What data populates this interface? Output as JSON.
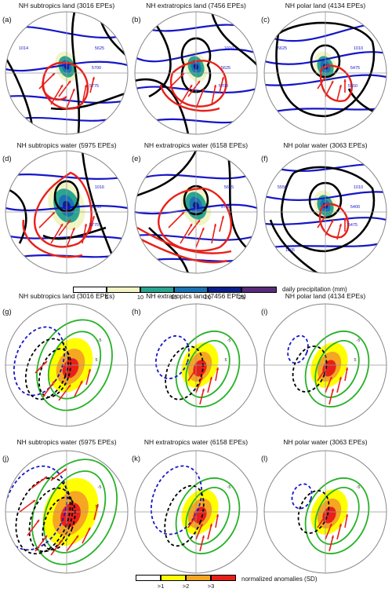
{
  "panels": [
    {
      "label": "(a)",
      "title": "NH subtropics land (3016 EPEs)"
    },
    {
      "label": "(b)",
      "title": "NH extratropics land (7456 EPEs)"
    },
    {
      "label": "(c)",
      "title": "NH polar land (4134 EPEs)"
    },
    {
      "label": "(d)",
      "title": "NH subtropics water (5975 EPEs)"
    },
    {
      "label": "(e)",
      "title": "NH extratropics water (6158 EPEs)"
    },
    {
      "label": "(f)",
      "title": "NH polar water (3063 EPEs)"
    },
    {
      "label": "(g)",
      "title": "NH subtropics land (3016 EPEs)"
    },
    {
      "label": "(h)",
      "title": "NH extratropics land (7456 EPEs)"
    },
    {
      "label": "(i)",
      "title": "NH polar land (4134 EPEs)"
    },
    {
      "label": "(j)",
      "title": "NH subtropics water (5975 EPEs)"
    },
    {
      "label": "(k)",
      "title": "NH extratropics water (6158 EPEs)"
    },
    {
      "label": "(l)",
      "title": "NH polar water (3063 EPEs)"
    }
  ],
  "contour_labels": {
    "a": [
      "5625",
      "5700",
      "5775",
      "1014"
    ],
    "b": [
      "1010",
      "5625",
      "5700"
    ],
    "c": [
      "1010",
      "5475",
      "5550",
      "5625"
    ],
    "d": [
      "1016",
      "5700",
      "5775"
    ],
    "e": [
      "5625",
      "5700"
    ],
    "f": [
      "1010",
      "5400",
      "5475",
      "5550",
      "1005"
    ],
    "g": [
      "-5",
      "5"
    ],
    "h": [
      "-5",
      "5"
    ],
    "i": [
      "-5",
      "5"
    ],
    "j": [
      "-5",
      "5"
    ],
    "k": [
      "-5"
    ],
    "l": [
      "-5"
    ]
  },
  "precip_colorbar": {
    "ticks": [
      "5",
      "10",
      "15",
      "20",
      "25"
    ],
    "title": "daily precipitation (mm)",
    "colors": [
      "#ffffff",
      "#f2f4c6",
      "#2aa58f",
      "#1b72b3",
      "#0c1f8c",
      "#5a2a7a"
    ]
  },
  "anomaly_colorbar": {
    "ticks": [
      ">1",
      ">2",
      ">3"
    ],
    "title": "normalized anomalies (SD)",
    "colors": [
      "#ffffff",
      "#ffff00",
      "#f5a623",
      "#e8201a"
    ]
  }
}
